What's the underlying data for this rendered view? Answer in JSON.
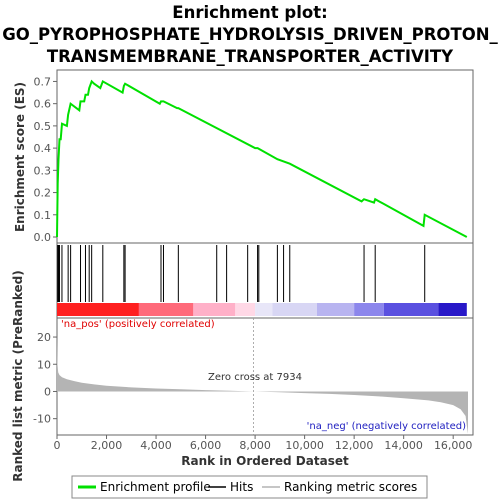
{
  "title_lines": [
    "Enrichment plot:",
    "GO_PYROPHOSPHATE_HYDROLYSIS_DRIVEN_PROTON_",
    "TRANSMEMBRANE_TRANSPORTER_ACTIVITY"
  ],
  "colors": {
    "es_line": "#00e000",
    "hits": "#000000",
    "metric_fill": "#b4b4b4",
    "pos_label": "#e00000",
    "neg_label": "#2020c0",
    "frame": "#666666"
  },
  "chart_data": [
    {
      "type": "line",
      "name": "enrichment-profile",
      "ylabel": "Enrichment score (ES)",
      "xlim": [
        0,
        16800
      ],
      "ylim": [
        0,
        0.72
      ],
      "yticks": [
        0.0,
        0.1,
        0.2,
        0.3,
        0.4,
        0.5,
        0.6,
        0.7
      ],
      "ytick_labels": [
        "0.0",
        "0.1",
        "0.2",
        "0.3",
        "0.4",
        "0.5",
        "0.6",
        "0.7"
      ],
      "grid": false,
      "x": [
        0,
        30,
        60,
        100,
        150,
        200,
        400,
        450,
        550,
        900,
        950,
        1100,
        1150,
        1250,
        1300,
        1400,
        1500,
        1750,
        1850,
        2650,
        2700,
        2750,
        4150,
        4200,
        4300,
        4850,
        4900,
        8000,
        8100,
        8900,
        9400,
        12300,
        12400,
        12800,
        12850,
        14800,
        14850,
        16550
      ],
      "y": [
        0.0,
        0.24,
        0.35,
        0.44,
        0.44,
        0.51,
        0.5,
        0.55,
        0.6,
        0.57,
        0.61,
        0.61,
        0.64,
        0.64,
        0.67,
        0.7,
        0.69,
        0.67,
        0.7,
        0.65,
        0.68,
        0.69,
        0.6,
        0.61,
        0.61,
        0.58,
        0.58,
        0.4,
        0.4,
        0.35,
        0.33,
        0.16,
        0.17,
        0.155,
        0.17,
        0.05,
        0.1,
        0.0
      ]
    },
    {
      "type": "bar",
      "name": "hits",
      "x": [
        30,
        60,
        100,
        200,
        450,
        550,
        950,
        1150,
        1300,
        1400,
        1850,
        2700,
        2750,
        4200,
        4300,
        4900,
        6450,
        6850,
        7700,
        8100,
        8150,
        8900,
        9150,
        9400,
        12400,
        12850,
        14850
      ]
    },
    {
      "type": "area",
      "name": "ranked-list-metric",
      "ylabel": "Ranked list metric (PreRanked)",
      "xlabel": "Rank in Ordered Dataset",
      "ylim": [
        -16,
        27
      ],
      "yticks": [
        -10,
        0,
        10,
        20
      ],
      "ytick_labels": [
        "-10",
        "0",
        "10",
        "20"
      ],
      "xticks": [
        0,
        2000,
        4000,
        6000,
        8000,
        10000,
        12000,
        14000,
        16000
      ],
      "xtick_labels": [
        "0",
        "2,000",
        "4,000",
        "6,000",
        "8,000",
        "10,000",
        "12,000",
        "14,000",
        "16,000"
      ],
      "x": [
        0,
        20,
        50,
        100,
        200,
        400,
        700,
        1000,
        1500,
        2000,
        3000,
        4000,
        5000,
        6000,
        7000,
        7934,
        9000,
        10000,
        11000,
        12000,
        13000,
        14000,
        15000,
        15500,
        16000,
        16300,
        16500,
        16550,
        16600
      ],
      "y": [
        20,
        10,
        7,
        6,
        5.2,
        4.5,
        3.8,
        3.2,
        2.6,
        2.1,
        1.5,
        1.1,
        0.8,
        0.5,
        0.25,
        0.0,
        -0.3,
        -0.6,
        -0.9,
        -1.3,
        -1.8,
        -2.5,
        -3.3,
        -4.0,
        -5.0,
        -6.5,
        -9.0,
        -12.5,
        -15.5
      ],
      "annotations": {
        "pos": "'na_pos' (positively correlated)",
        "neg": "'na_neg' (negatively correlated)",
        "zero_cross": "Zero cross at 7934",
        "zero_cross_x": 7934
      }
    }
  ],
  "heatbar": [
    {
      "from": 0,
      "to": 5500,
      "color": "#ff2020"
    },
    {
      "from": 3300,
      "to": 5500,
      "color": "#ff6a7a"
    },
    {
      "from": 5500,
      "to": 7200,
      "color": "#ffb0c8"
    },
    {
      "from": 7200,
      "to": 8000,
      "color": "#ffd8e6"
    },
    {
      "from": 8000,
      "to": 8700,
      "color": "#e8e6f8"
    },
    {
      "from": 8700,
      "to": 10500,
      "color": "#d8d6f4"
    },
    {
      "from": 10500,
      "to": 12000,
      "color": "#b8b4f0"
    },
    {
      "from": 12000,
      "to": 13200,
      "color": "#8c86ec"
    },
    {
      "from": 13200,
      "to": 15400,
      "color": "#5a50e0"
    },
    {
      "from": 15400,
      "to": 16550,
      "color": "#2818c8"
    }
  ],
  "legend": [
    {
      "label": "Enrichment profile",
      "kind": "line",
      "color": "#00e000"
    },
    {
      "label": "Hits",
      "kind": "line",
      "color": "#000000"
    },
    {
      "label": "Ranking metric scores",
      "kind": "line",
      "color": "#b4b4b4"
    }
  ]
}
